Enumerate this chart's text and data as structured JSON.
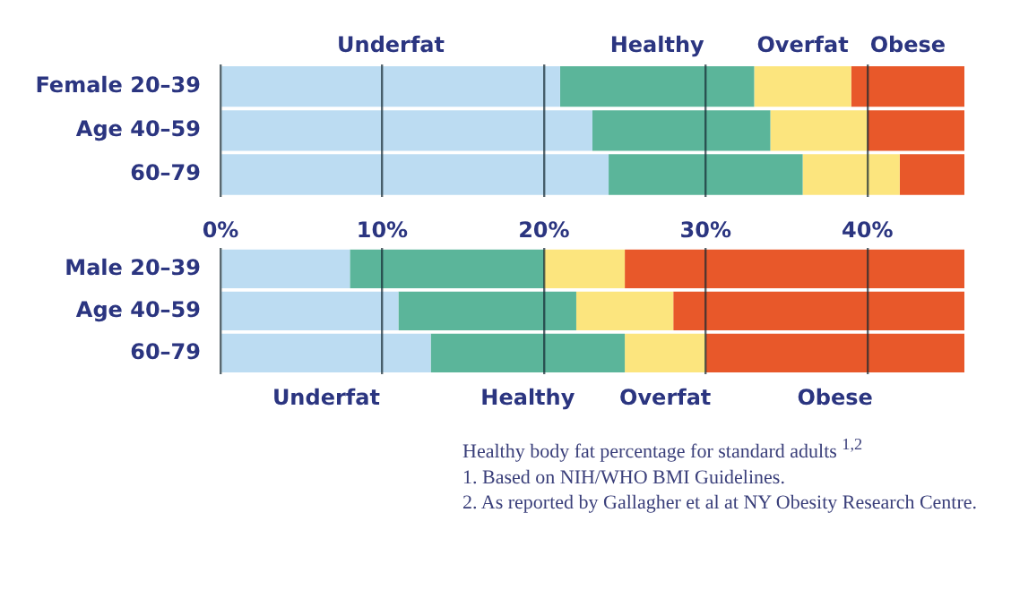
{
  "chart_data": [
    {
      "type": "bar",
      "orientation": "horizontal",
      "stacked": true,
      "categories": [
        "Female 20–39",
        "Age 40–59",
        "60–79"
      ],
      "series": [
        {
          "name": "Underfat",
          "color": "#bcdcf2",
          "values": [
            21,
            23,
            24
          ]
        },
        {
          "name": "Healthy",
          "color": "#5bb59a",
          "values": [
            12,
            11,
            12
          ]
        },
        {
          "name": "Overfat",
          "color": "#fce57e",
          "values": [
            6,
            6,
            6
          ]
        },
        {
          "name": "Obese",
          "color": "#e8582a",
          "values": [
            7,
            6,
            4
          ]
        }
      ],
      "xlim": [
        0,
        46
      ],
      "xticks": [
        {
          "value": 0,
          "label": null
        },
        {
          "value": 10,
          "label": null
        },
        {
          "value": 20,
          "label": null
        },
        {
          "value": 30,
          "label": null
        },
        {
          "value": 40,
          "label": null
        }
      ],
      "grid": "x",
      "tick_labels": "y"
    },
    {
      "type": "bar",
      "orientation": "horizontal",
      "stacked": true,
      "categories": [
        "Male 20–39",
        "Age 40–59",
        "60–79"
      ],
      "series": [
        {
          "name": "Underfat",
          "color": "#bcdcf2",
          "values": [
            8,
            11,
            13
          ]
        },
        {
          "name": "Healthy",
          "color": "#5bb59a",
          "values": [
            12,
            11,
            12
          ]
        },
        {
          "name": "Overfat",
          "color": "#fce57e",
          "values": [
            5,
            6,
            5
          ]
        },
        {
          "name": "Obese",
          "color": "#e8582a",
          "values": [
            21,
            18,
            16
          ]
        }
      ],
      "xlim": [
        0,
        46
      ],
      "xticks": [
        {
          "value": 0,
          "label": "0%"
        },
        {
          "value": 10,
          "label": "10%"
        },
        {
          "value": 20,
          "label": "20%"
        },
        {
          "value": 30,
          "label": "30%"
        },
        {
          "value": 40,
          "label": "40%"
        }
      ],
      "grid": "x",
      "annotations": [
        "Healthy body fat percentage for standard adults $^{1,2}$",
        "1. Based on NIH/WHO BMI Guidelines.",
        "2. As reported by Gallagher et al at NY Obesity Research Centre."
      ]
    }
  ]
}
